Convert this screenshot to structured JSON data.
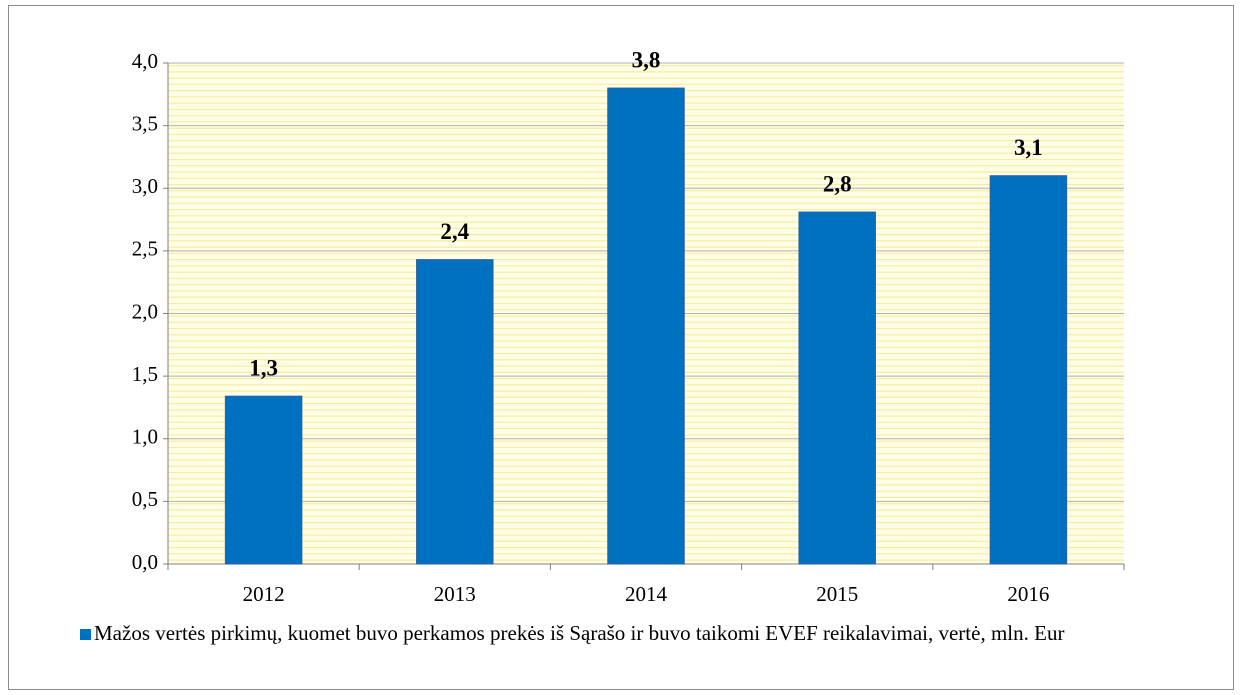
{
  "chart_data": {
    "type": "bar",
    "categories": [
      "2012",
      "2013",
      "2014",
      "2015",
      "2016"
    ],
    "series": [
      {
        "name": "Mažos vertės pirkimų, kuomet buvo perkamos prekės iš Sąrašo ir buvo taikomi EVEF reikalavimai, vertė, mln. Eur",
        "color": "#0070c0",
        "values": [
          1.34,
          2.43,
          3.8,
          2.81,
          3.1
        ],
        "value_labels": [
          "1,3",
          "2,4",
          "3,8",
          "2,8",
          "3,1"
        ]
      }
    ],
    "ylim": [
      0,
      4
    ],
    "yticks": [
      {
        "value": 0,
        "label": "0,0"
      },
      {
        "value": 0.5,
        "label": "0,5"
      },
      {
        "value": 1,
        "label": "1,0"
      },
      {
        "value": 1.5,
        "label": "1,5"
      },
      {
        "value": 2,
        "label": "2,0"
      },
      {
        "value": 2.5,
        "label": "2,5"
      },
      {
        "value": 3,
        "label": "3,0"
      },
      {
        "value": 3.5,
        "label": "3,5"
      },
      {
        "value": 4,
        "label": "4,0"
      }
    ],
    "grid": true
  }
}
